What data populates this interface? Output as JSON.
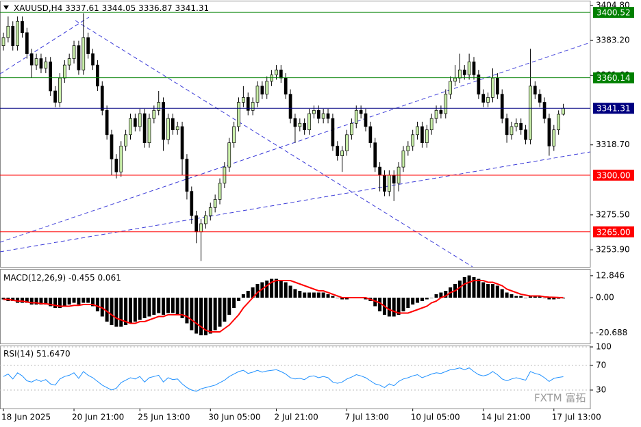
{
  "watermark": "FXTM 富拓",
  "chart_data": [
    {
      "type": "candlestick",
      "title": "XAUUSD,H4",
      "x": [
        "18 Jun 2025",
        null,
        null,
        null,
        null,
        null,
        null,
        null,
        null,
        null,
        null,
        null,
        null,
        null,
        null,
        "20 Jun 21:00",
        null,
        null,
        null,
        null,
        null,
        null,
        null,
        null,
        null,
        null,
        null,
        null,
        null,
        "25 Jun 13:00",
        null,
        null,
        null,
        null,
        null,
        null,
        null,
        null,
        null,
        null,
        null,
        null,
        null,
        null,
        "30 Jun 05:00",
        null,
        null,
        null,
        null,
        null,
        null,
        null,
        null,
        null,
        null,
        null,
        null,
        null,
        "2 Jul 21:00",
        null,
        null,
        null,
        null,
        null,
        null,
        null,
        null,
        null,
        null,
        null,
        null,
        null,
        null,
        "7 Jul 13:00",
        null,
        null,
        null,
        null,
        null,
        null,
        null,
        null,
        null,
        null,
        null,
        null,
        null,
        "10 Jul 05:00",
        null,
        null,
        null,
        null,
        null,
        null,
        null,
        null,
        null,
        null,
        null,
        null,
        null,
        null,
        "14 Jul 21:00",
        null,
        null,
        null,
        null,
        null,
        null,
        null,
        null,
        null,
        null,
        null,
        null,
        null,
        null,
        "17 Jul 13:00",
        null,
        null
      ],
      "open": [
        3380,
        3385,
        3392,
        3380,
        3395,
        3388,
        3375,
        3368,
        3372,
        3366,
        3370,
        3352,
        3345,
        3360,
        3368,
        3372,
        3380,
        3365,
        3385,
        3375,
        3368,
        3355,
        3340,
        3325,
        3310,
        3302,
        3318,
        3325,
        3335,
        3330,
        3338,
        3320,
        3335,
        3340,
        3345,
        3322,
        3335,
        3328,
        3330,
        3310,
        3290,
        3275,
        3265,
        3270,
        3275,
        3280,
        3285,
        3295,
        3305,
        3320,
        3330,
        3345,
        3348,
        3340,
        3345,
        3355,
        3350,
        3358,
        3362,
        3365,
        3360,
        3350,
        3335,
        3330,
        3332,
        3328,
        3338,
        3340,
        3335,
        3338,
        3335,
        3318,
        3312,
        3315,
        3325,
        3332,
        3340,
        3338,
        3330,
        3320,
        3305,
        3300,
        3290,
        3300,
        3295,
        3305,
        3315,
        3318,
        3325,
        3330,
        3320,
        3328,
        3335,
        3340,
        3338,
        3350,
        3358,
        3360,
        3365,
        3362,
        3370,
        3362,
        3350,
        3345,
        3348,
        3360,
        3350,
        3335,
        3325,
        3330,
        3332,
        3328,
        3322,
        3355,
        3350,
        3345,
        3335,
        3318,
        3328,
        3337.61
      ],
      "high": [
        3388,
        3398,
        3395,
        3398,
        3398,
        3391,
        3378,
        3375,
        3375,
        3373,
        3373,
        3355,
        3363,
        3371,
        3375,
        3383,
        3383,
        3400,
        3388,
        3378,
        3371,
        3358,
        3343,
        3328,
        3313,
        3321,
        3328,
        3338,
        3338,
        3341,
        3341,
        3338,
        3343,
        3352,
        3348,
        3338,
        3338,
        3333,
        3333,
        3313,
        3293,
        3278,
        3273,
        3278,
        3283,
        3288,
        3298,
        3308,
        3323,
        3333,
        3348,
        3355,
        3351,
        3348,
        3358,
        3358,
        3361,
        3365,
        3368,
        3368,
        3363,
        3353,
        3338,
        3335,
        3335,
        3341,
        3343,
        3343,
        3341,
        3341,
        3338,
        3321,
        3318,
        3328,
        3335,
        3343,
        3343,
        3341,
        3333,
        3323,
        3308,
        3303,
        3303,
        3303,
        3308,
        3318,
        3321,
        3328,
        3333,
        3333,
        3331,
        3338,
        3343,
        3343,
        3353,
        3361,
        3368,
        3375,
        3368,
        3375,
        3373,
        3365,
        3353,
        3351,
        3366,
        3363,
        3353,
        3338,
        3333,
        3335,
        3335,
        3331,
        3378,
        3358,
        3353,
        3348,
        3338,
        3331,
        3340,
        3344.05
      ],
      "low": [
        3377,
        3382,
        3377,
        3377,
        3385,
        3372,
        3360,
        3365,
        3363,
        3363,
        3349,
        3342,
        3342,
        3357,
        3365,
        3369,
        3362,
        3362,
        3372,
        3365,
        3352,
        3337,
        3322,
        3300,
        3298,
        3299,
        3315,
        3322,
        3327,
        3327,
        3317,
        3317,
        3332,
        3337,
        3315,
        3319,
        3325,
        3325,
        3300,
        3285,
        3270,
        3258,
        3247,
        3267,
        3272,
        3277,
        3282,
        3292,
        3302,
        3317,
        3327,
        3342,
        3337,
        3337,
        3342,
        3347,
        3347,
        3355,
        3359,
        3357,
        3347,
        3332,
        3320,
        3327,
        3325,
        3325,
        3335,
        3332,
        3332,
        3332,
        3315,
        3309,
        3302,
        3312,
        3322,
        3329,
        3335,
        3327,
        3317,
        3302,
        3290,
        3287,
        3287,
        3284,
        3290,
        3302,
        3312,
        3315,
        3322,
        3317,
        3317,
        3325,
        3332,
        3335,
        3335,
        3347,
        3355,
        3357,
        3359,
        3359,
        3359,
        3347,
        3342,
        3342,
        3345,
        3347,
        3332,
        3320,
        3322,
        3327,
        3325,
        3319,
        3319,
        3347,
        3342,
        3332,
        3312,
        3315,
        3325,
        3336.87
      ],
      "close": [
        3385,
        3392,
        3380,
        3395,
        3388,
        3375,
        3368,
        3372,
        3366,
        3370,
        3352,
        3345,
        3360,
        3368,
        3372,
        3380,
        3365,
        3385,
        3375,
        3368,
        3355,
        3340,
        3325,
        3310,
        3302,
        3318,
        3325,
        3335,
        3330,
        3338,
        3320,
        3335,
        3340,
        3345,
        3322,
        3335,
        3328,
        3330,
        3310,
        3290,
        3275,
        3265,
        3270,
        3275,
        3280,
        3285,
        3295,
        3305,
        3320,
        3330,
        3345,
        3348,
        3340,
        3345,
        3355,
        3350,
        3358,
        3362,
        3365,
        3360,
        3350,
        3335,
        3330,
        3332,
        3328,
        3338,
        3340,
        3335,
        3338,
        3335,
        3318,
        3312,
        3315,
        3325,
        3332,
        3340,
        3338,
        3330,
        3320,
        3305,
        3300,
        3290,
        3300,
        3295,
        3305,
        3315,
        3318,
        3325,
        3330,
        3320,
        3328,
        3335,
        3340,
        3338,
        3350,
        3358,
        3360,
        3365,
        3362,
        3370,
        3362,
        3350,
        3345,
        3348,
        3360,
        3350,
        3335,
        3325,
        3330,
        3332,
        3328,
        3322,
        3355,
        3350,
        3345,
        3335,
        3318,
        3328,
        3337.61,
        3341.31
      ],
      "up_color": "#c8eea8",
      "down_color": "#000000",
      "ylim": [
        3243.35,
        3407.34
      ],
      "yticks": [
        {
          "value": 3404.8,
          "label": "3404.80"
        },
        {
          "value": 3383.2,
          "label": "3383.20"
        },
        {
          "value": 3361.6,
          "label": "3361.60"
        },
        {
          "value": 3318.7,
          "label": "3318.70"
        },
        {
          "value": 3275.5,
          "label": "3275.50"
        },
        {
          "value": 3253.9,
          "label": "3253.90"
        }
      ],
      "levels": [
        {
          "price": 3400.52,
          "color": "#008000"
        },
        {
          "price": 3360.14,
          "color": "#008000"
        },
        {
          "price": 3341.31,
          "color": "#000080"
        },
        {
          "price": {
            "value": 3300,
            "label": "3300.00"
          },
          "color": "#ff0000"
        },
        {
          "price": {
            "value": 3265,
            "label": "3265.00"
          },
          "color": "#ff0000"
        }
      ]
    },
    {
      "type": "macd",
      "title": "MACD(12,26,9)",
      "series": [
        {
          "color": "#000000",
          "values": [
            -1,
            -2,
            -2,
            -3,
            -3,
            -3,
            -4,
            -4,
            -4,
            -4,
            -5,
            -6,
            -6,
            -5,
            -4,
            -3,
            -4,
            -3,
            -3,
            -5,
            -8,
            -11,
            -14,
            -16,
            -17,
            -17,
            -16,
            -15,
            -14,
            -13,
            -12,
            -11,
            -10,
            -9,
            -10,
            -9,
            -9,
            -10,
            -12,
            -15,
            -19,
            -21,
            -22,
            -22,
            -21,
            -19,
            -17,
            -14,
            -10,
            -6,
            -2,
            2,
            4,
            6,
            8,
            9,
            10,
            11,
            11,
            10,
            9,
            7,
            5,
            4,
            3,
            3,
            3,
            3,
            3,
            2,
            1,
            0,
            -1,
            -1,
            0,
            0,
            0,
            -1,
            -2,
            -5,
            -8,
            -10,
            -11,
            -11,
            -10,
            -8,
            -6,
            -4,
            -3,
            -2,
            -1,
            0,
            2,
            3,
            4,
            6,
            8,
            10,
            12,
            13,
            12,
            11,
            9,
            8,
            8,
            7,
            5,
            3,
            2,
            1,
            1,
            0,
            1,
            1,
            1,
            0,
            -1,
            -1,
            -0.6,
            -0.455
          ]
        },
        {
          "color": "#ff0000",
          "values": [
            -1,
            -1,
            -1.5,
            -2,
            -2,
            -2.5,
            -3,
            -3,
            -3.5,
            -3.5,
            -4,
            -4.5,
            -5,
            -5,
            -5,
            -4.5,
            -4.5,
            -4,
            -4,
            -4,
            -5,
            -6,
            -8,
            -10,
            -12,
            -13,
            -14,
            -15,
            -15,
            -14,
            -14,
            -13,
            -12,
            -11,
            -11,
            -10,
            -10,
            -10,
            -10,
            -11,
            -13,
            -15,
            -17,
            -19,
            -20,
            -20,
            -20,
            -18,
            -16,
            -13,
            -10,
            -6,
            -3,
            0,
            3,
            5,
            7,
            9,
            10,
            10,
            10,
            10,
            9,
            8,
            7,
            6,
            5,
            4,
            4,
            3,
            2,
            1,
            0,
            0,
            0,
            0,
            0,
            0,
            -1,
            -2,
            -3,
            -5,
            -7,
            -8,
            -9,
            -9,
            -9,
            -8,
            -7,
            -6,
            -5,
            -3,
            -2,
            0,
            1,
            3,
            4,
            6,
            8,
            9,
            10,
            10,
            10,
            9,
            9,
            8,
            7,
            5,
            4,
            3,
            2,
            1.5,
            1,
            1,
            1,
            0.5,
            0.3,
            0.2,
            0.1,
            0.061
          ]
        }
      ],
      "ylim": [
        -26.8,
        16.4
      ],
      "yticks": [
        12.846,
        {
          "value": 0,
          "label": "0.00"
        },
        -20.688
      ]
    },
    {
      "type": "line",
      "title": "RSI(14)",
      "current": {
        "value": 51.647,
        "label": "51.6470"
      },
      "series": [
        {
          "color": "#1e90ff",
          "values": [
            52,
            56,
            48,
            58,
            53,
            45,
            43,
            47,
            44,
            47,
            40,
            38,
            48,
            52,
            54,
            58,
            49,
            60,
            54,
            50,
            44,
            38,
            34,
            30,
            33,
            42,
            46,
            50,
            48,
            52,
            43,
            50,
            52,
            54,
            43,
            50,
            47,
            48,
            40,
            34,
            30,
            28,
            32,
            34,
            36,
            38,
            42,
            46,
            52,
            56,
            60,
            62,
            57,
            59,
            62,
            59,
            61,
            62,
            63,
            60,
            56,
            50,
            48,
            49,
            47,
            52,
            53,
            50,
            52,
            50,
            43,
            41,
            43,
            48,
            51,
            55,
            53,
            50,
            45,
            40,
            38,
            34,
            40,
            37,
            44,
            48,
            50,
            53,
            55,
            50,
            53,
            56,
            58,
            57,
            60,
            63,
            64,
            66,
            63,
            66,
            60,
            55,
            53,
            55,
            60,
            55,
            48,
            45,
            48,
            50,
            48,
            46,
            60,
            57,
            55,
            50,
            44,
            49,
            50.5,
            51.647
          ]
        }
      ],
      "ylim": [
        0,
        100
      ],
      "yticks": [
        100,
        70,
        30
      ],
      "grid": true
    }
  ]
}
